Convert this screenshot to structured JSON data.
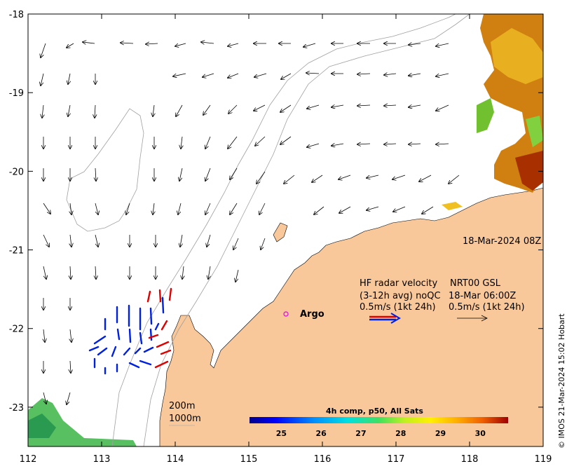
{
  "map": {
    "timestamp": "18-Mar-2024 08Z",
    "lon_ticks": [
      "112",
      "113",
      "114",
      "115",
      "116",
      "117",
      "118",
      "119"
    ],
    "lat_ticks": [
      "-18",
      "-19",
      "-20",
      "-21",
      "-22",
      "-23"
    ],
    "lon_range": [
      112,
      119
    ],
    "lat_range": [
      -23.5,
      -18
    ],
    "argo_label": "Argo",
    "isobath_labels": [
      "200m",
      "1000m"
    ],
    "land_color": "#f9c89a",
    "argo_color": "#e020e0"
  },
  "legend": {
    "hf_title": "HF radar velocity",
    "hf_qc": "(3-12h avg) noQC",
    "hf_scale": "0.5m/s (1kt 24h)",
    "model_title": "NRT00 GSL",
    "model_time": "18-Mar 06:00Z",
    "model_scale": "0.5m/s (1kt 24h)",
    "radar_colors": [
      "#e00000",
      "#0020e0"
    ]
  },
  "colorbar": {
    "title": "4h comp, p50, All Sats",
    "ticks": [
      "25",
      "26",
      "27",
      "28",
      "29",
      "30"
    ],
    "range": [
      24.2,
      30.7
    ]
  },
  "credit": "© IMOS 21-Mar-2024 15:02 Hobart"
}
